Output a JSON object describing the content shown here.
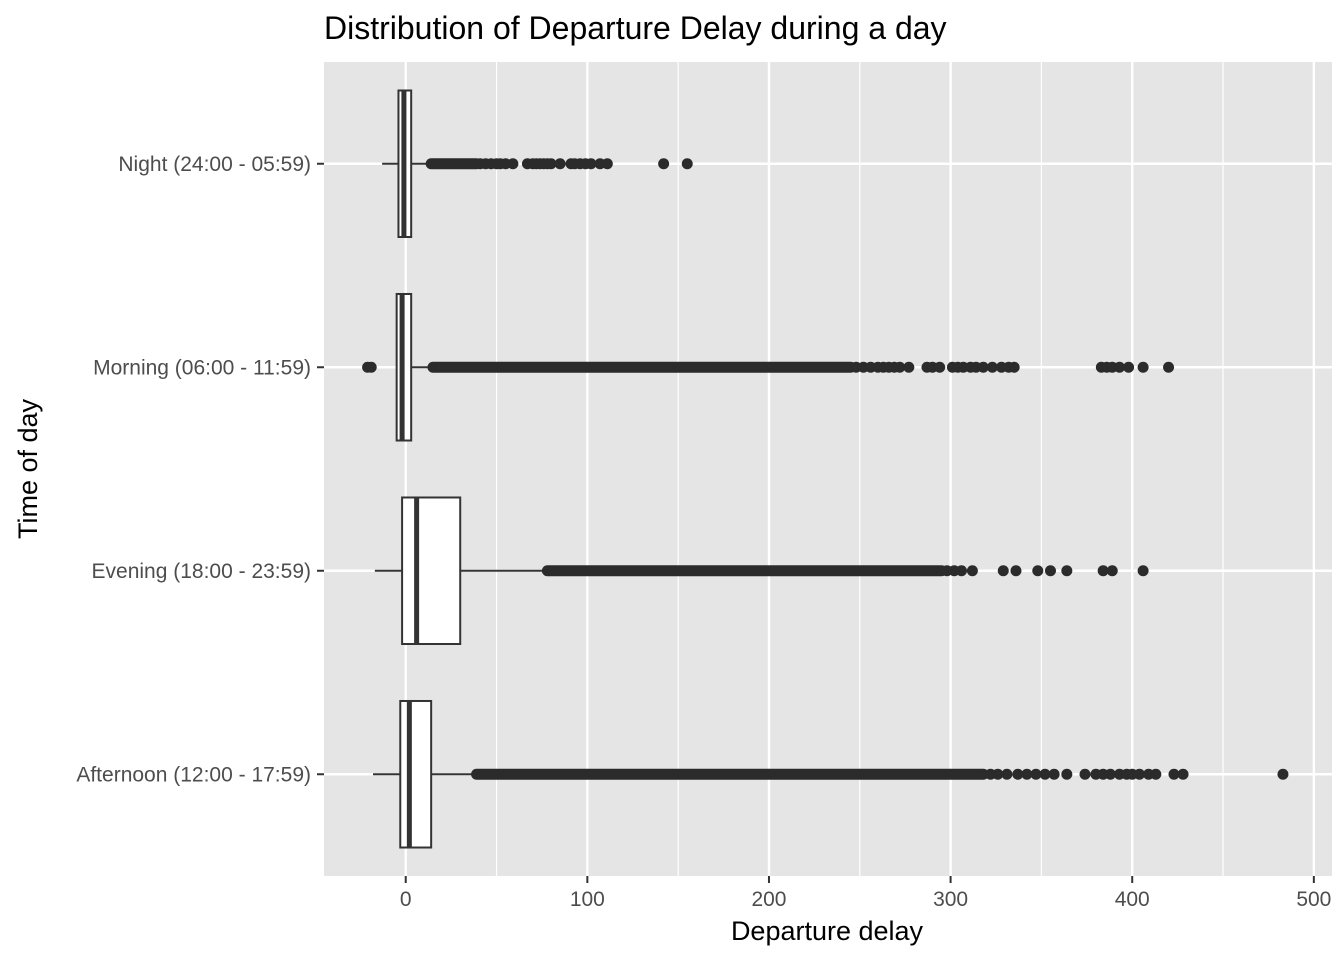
{
  "chart_data": {
    "type": "boxplot",
    "orientation": "horizontal",
    "title": "Distribution of Departure Delay during a day",
    "xlabel": "Departure delay",
    "ylabel": "Time of day",
    "xlim": [
      -45,
      510
    ],
    "x_ticks": [
      0,
      100,
      200,
      300,
      400,
      500
    ],
    "x_minor_ticks": [
      50,
      150,
      250,
      350,
      450
    ],
    "grid": true,
    "legend": "none",
    "colors": {
      "panel": "#e5e5e5",
      "grid": "#ffffff",
      "box_fill": "#ffffff",
      "box_line": "#333333",
      "outlier": "#2b2b2b",
      "tick_label": "#4d4d4d"
    },
    "categories": [
      "Night (24:00 - 05:59)",
      "Morning (06:00 - 11:59)",
      "Evening (18:00 - 23:59)",
      "Afternoon (12:00 - 17:59)"
    ],
    "boxes": [
      {
        "category": "Night (24:00 - 05:59)",
        "whisker_low": -13,
        "q1": -4,
        "median": -1,
        "q3": 3,
        "whisker_high": 13,
        "outliers_dense": [
          14,
          39
        ],
        "outliers": [
          41,
          44,
          47,
          50,
          52,
          55,
          59,
          67,
          70,
          72,
          74,
          76,
          78,
          80,
          85,
          91,
          93,
          96,
          99,
          102,
          107,
          111,
          142,
          155
        ]
      },
      {
        "category": "Morning (06:00 - 11:59)",
        "whisker_low": -5,
        "q1": -5,
        "median": -2,
        "q3": 3,
        "whisker_high": 14,
        "outliers_dense": [
          15,
          245
        ],
        "outliers": [
          -21,
          -19,
          248,
          252,
          256,
          260,
          263,
          266,
          269,
          272,
          277,
          287,
          290,
          294,
          301,
          304,
          307,
          311,
          314,
          318,
          323,
          328,
          332,
          335,
          383,
          386,
          389,
          393,
          398,
          406,
          420
        ]
      },
      {
        "category": "Evening (18:00 - 23:59)",
        "whisker_low": -17,
        "q1": -2,
        "median": 6,
        "q3": 30,
        "whisker_high": 77,
        "outliers_dense": [
          78,
          295
        ],
        "outliers": [
          298,
          302,
          306,
          312,
          329,
          336,
          348,
          355,
          364,
          384,
          389,
          406
        ]
      },
      {
        "category": "Afternoon (12:00 - 17:59)",
        "whisker_low": -18,
        "q1": -3,
        "median": 2,
        "q3": 14,
        "whisker_high": 38,
        "outliers_dense": [
          39,
          318
        ],
        "outliers": [
          322,
          326,
          331,
          337,
          342,
          347,
          352,
          357,
          364,
          374,
          380,
          384,
          388,
          393,
          397,
          400,
          404,
          409,
          413,
          423,
          428,
          483
        ]
      }
    ]
  }
}
